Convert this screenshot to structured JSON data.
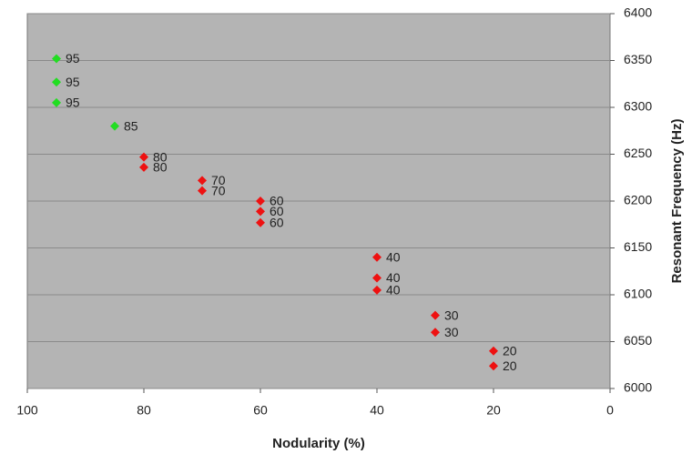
{
  "chart_data": {
    "type": "scatter",
    "x_label": "Nodularity (%)",
    "y_label": "Resonant Frequency (Hz)",
    "xlim": [
      100,
      0
    ],
    "xticks": [
      100,
      80,
      60,
      40,
      20,
      0
    ],
    "ylim": [
      6000,
      6400
    ],
    "yticks": [
      6000,
      6050,
      6100,
      6150,
      6200,
      6250,
      6300,
      6350,
      6400
    ],
    "grid": true,
    "y_axis_side": "right",
    "background": "#b4b4b4",
    "series": [
      {
        "color": "#22dd22",
        "x": [
          95,
          95,
          95,
          85
        ],
        "values": [
          6352,
          6327,
          6305,
          6280
        ]
      },
      {
        "color": "#ee1111",
        "x": [
          80,
          80,
          70,
          70,
          60,
          60,
          60,
          40,
          40,
          40,
          30,
          30,
          20,
          20
        ],
        "values": [
          6247,
          6236,
          6222,
          6211,
          6200,
          6189,
          6177,
          6140,
          6118,
          6105,
          6078,
          6060,
          6040,
          6024
        ]
      }
    ]
  }
}
